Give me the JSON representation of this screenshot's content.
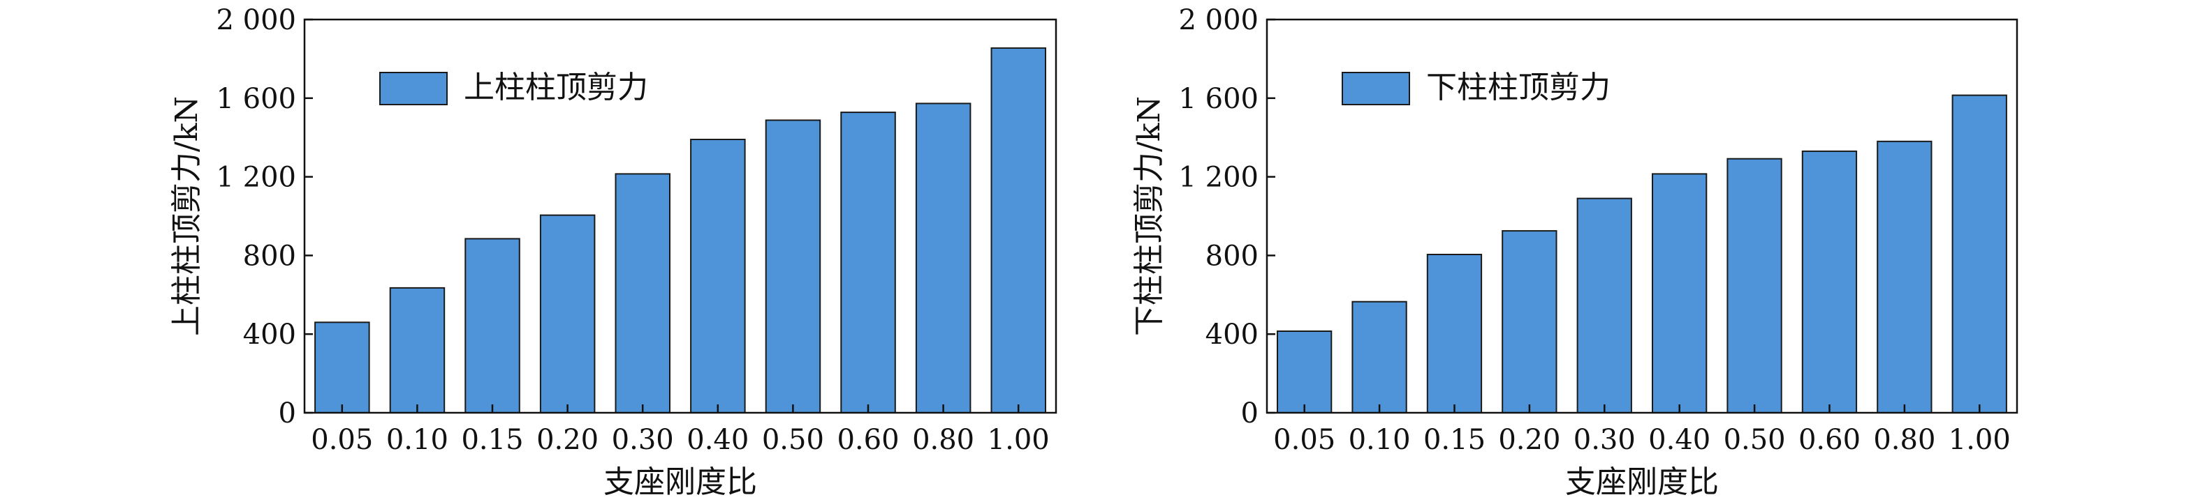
{
  "chart_data": [
    {
      "type": "bar",
      "categories": [
        "0.05",
        "0.10",
        "0.15",
        "0.20",
        "0.30",
        "0.40",
        "0.50",
        "0.60",
        "0.80",
        "1.00"
      ],
      "values": [
        460,
        635,
        885,
        1005,
        1215,
        1390,
        1488,
        1528,
        1573,
        1855
      ],
      "series_name": "上柱柱顶剪力",
      "xlabel": "支座刚度比",
      "ylabel": "上柱柱顶剪力/kN",
      "ylim": [
        0,
        2000
      ],
      "yticks": [
        0,
        400,
        800,
        1200,
        1600,
        2000
      ],
      "ytick_labels": [
        "0",
        "400",
        "800",
        "1 200",
        "1 600",
        "2 000"
      ],
      "legend_position": "top-left",
      "grid": false,
      "bar_color": "#4f94d8"
    },
    {
      "type": "bar",
      "categories": [
        "0.05",
        "0.10",
        "0.15",
        "0.20",
        "0.30",
        "0.40",
        "0.50",
        "0.60",
        "0.80",
        "1.00"
      ],
      "values": [
        415,
        565,
        805,
        925,
        1090,
        1215,
        1292,
        1330,
        1380,
        1615
      ],
      "series_name": "下柱柱顶剪力",
      "xlabel": "支座刚度比",
      "ylabel": "下柱柱顶剪力/kN",
      "ylim": [
        0,
        2000
      ],
      "yticks": [
        0,
        400,
        800,
        1200,
        1600,
        2000
      ],
      "ytick_labels": [
        "0",
        "400",
        "800",
        "1 200",
        "1 600",
        "2 000"
      ],
      "legend_position": "top-left",
      "grid": false,
      "bar_color": "#4f94d8"
    }
  ]
}
